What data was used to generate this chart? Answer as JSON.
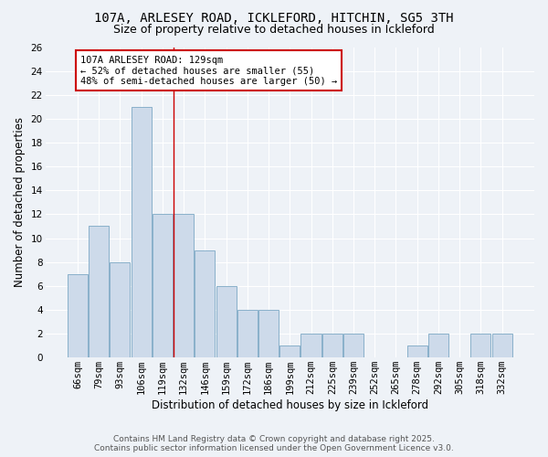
{
  "title": "107A, ARLESEY ROAD, ICKLEFORD, HITCHIN, SG5 3TH",
  "subtitle": "Size of property relative to detached houses in Ickleford",
  "xlabel": "Distribution of detached houses by size in Ickleford",
  "ylabel": "Number of detached properties",
  "categories": [
    "66sqm",
    "79sqm",
    "93sqm",
    "106sqm",
    "119sqm",
    "132sqm",
    "146sqm",
    "159sqm",
    "172sqm",
    "186sqm",
    "199sqm",
    "212sqm",
    "225sqm",
    "239sqm",
    "252sqm",
    "265sqm",
    "278sqm",
    "292sqm",
    "305sqm",
    "318sqm",
    "332sqm"
  ],
  "values": [
    7,
    11,
    8,
    21,
    12,
    12,
    9,
    6,
    4,
    4,
    1,
    2,
    2,
    2,
    0,
    0,
    1,
    2,
    0,
    2,
    2
  ],
  "bar_color": "#cddaea",
  "bar_edge_color": "#7ba7c4",
  "bar_width": 0.95,
  "ylim": [
    0,
    26
  ],
  "yticks": [
    0,
    2,
    4,
    6,
    8,
    10,
    12,
    14,
    16,
    18,
    20,
    22,
    24,
    26
  ],
  "vline_x": 4.5,
  "vline_color": "#cc0000",
  "annotation_text": "107A ARLESEY ROAD: 129sqm\n← 52% of detached houses are smaller (55)\n48% of semi-detached houses are larger (50) →",
  "annotation_box_color": "#ffffff",
  "annotation_box_edge_color": "#cc0000",
  "footer_line1": "Contains HM Land Registry data © Crown copyright and database right 2025.",
  "footer_line2": "Contains public sector information licensed under the Open Government Licence v3.0.",
  "background_color": "#eef2f7",
  "plot_background": "#eef2f7",
  "grid_color": "#ffffff",
  "title_fontsize": 10,
  "subtitle_fontsize": 9,
  "axis_label_fontsize": 8.5,
  "tick_fontsize": 7.5,
  "annotation_fontsize": 7.5,
  "footer_fontsize": 6.5
}
